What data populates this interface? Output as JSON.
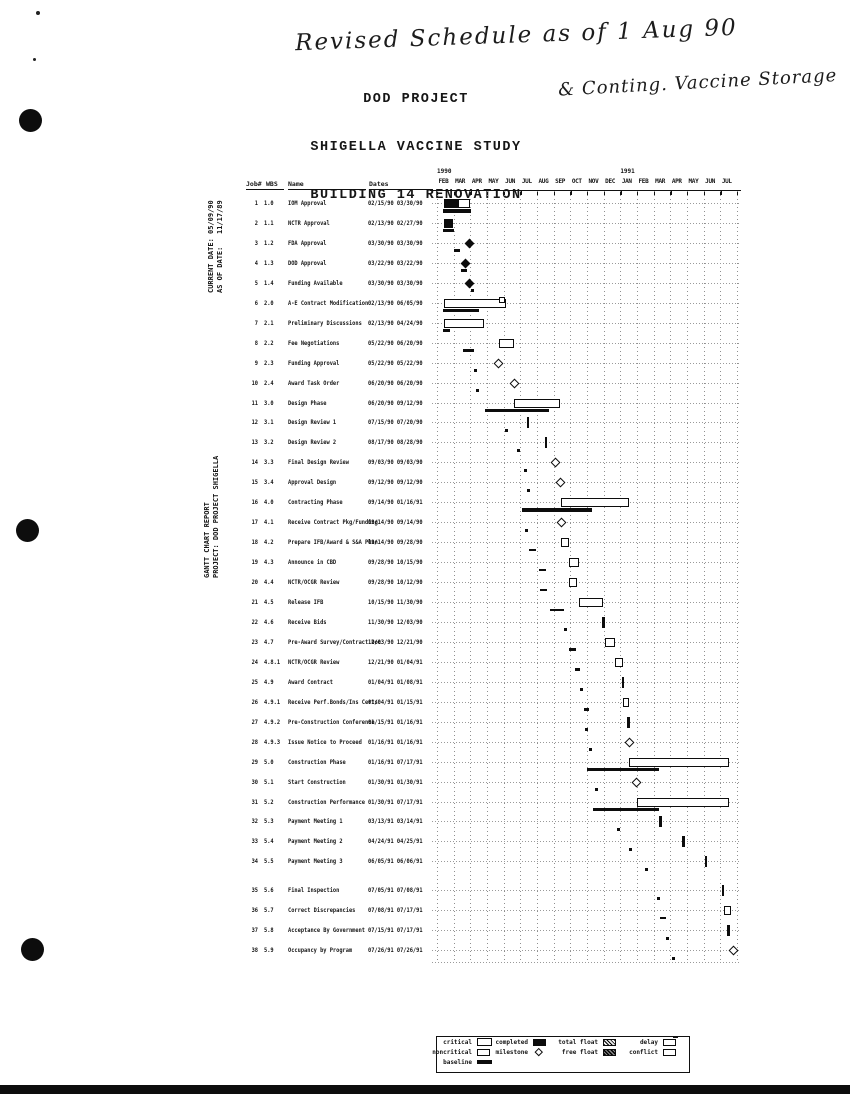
{
  "annotations": {
    "handwriting_top": "Revised Schedule as of 1 Aug 90",
    "handwriting_side": "& Conting. Vaccine Storage"
  },
  "title": {
    "line1": "DOD PROJECT",
    "line2": "SHIGELLA VACCINE STUDY",
    "line3": "BUILDING 14 RENOVATION"
  },
  "side": {
    "dates_block": "CURRENT DATE: 05/09/90\nAS OF DATE:   11/17/89",
    "report_block": "GANTT CHART REPORT\nPROJECT: DOD PROJECT SHIGELLA"
  },
  "columns": {
    "job": "Job#",
    "wbs": "WBS",
    "name": "Name",
    "dates": "Dates"
  },
  "timeline": {
    "years": [
      {
        "label": "1990",
        "month": 0
      },
      {
        "label": "1991",
        "month": 11
      }
    ],
    "months": [
      "FEB",
      "MAR",
      "APR",
      "MAY",
      "JUN",
      "JUL",
      "AUG",
      "SEP",
      "OCT",
      "NOV",
      "DEC",
      "JAN",
      "FEB",
      "MAR",
      "APR",
      "MAY",
      "JUN",
      "JUL"
    ]
  },
  "tasks": [
    {
      "job": "1",
      "wbs": "1.0",
      "name": "IOM Approval",
      "dates": "02/15/90 03/30/90",
      "bar": {
        "type": "completed+open",
        "start": 0.45,
        "split": 1.35,
        "end": 2.0
      },
      "baseline": {
        "kind": "bar",
        "start": 0.35,
        "end": 2.05
      }
    },
    {
      "job": "2",
      "wbs": "1.1",
      "name": "NCTR Approval",
      "dates": "02/13/90 02/27/90",
      "bar": {
        "type": "completed",
        "start": 0.4,
        "end": 0.95
      },
      "baseline": {
        "kind": "bar",
        "start": 0.35,
        "end": 1.0
      }
    },
    {
      "job": "3",
      "wbs": "1.2",
      "name": "FDA Approval",
      "dates": "03/30/90 03/30/90",
      "bar": {
        "type": "milestone-filled",
        "at": 1.97
      },
      "baseline": {
        "kind": "dash",
        "start": 1.0,
        "end": 1.4
      }
    },
    {
      "job": "4",
      "wbs": "1.3",
      "name": "DOD Approval",
      "dates": "03/22/90 03/22/90",
      "bar": {
        "type": "milestone-filled",
        "at": 1.72
      },
      "baseline": {
        "kind": "dash",
        "start": 1.45,
        "end": 1.8
      }
    },
    {
      "job": "5",
      "wbs": "1.4",
      "name": "Funding Available",
      "dates": "03/30/90 03/30/90",
      "bar": {
        "type": "milestone-filled",
        "at": 1.97
      },
      "baseline": {
        "kind": "dot",
        "at": 2.15
      }
    },
    {
      "job": "6",
      "wbs": "2.0",
      "name": "A-E Contract Modification",
      "dates": "02/13/90 06/05/90",
      "bar": {
        "type": "open",
        "start": 0.4,
        "end": 4.15,
        "endmark": true
      },
      "baseline": {
        "kind": "bar",
        "start": 0.35,
        "end": 2.5
      }
    },
    {
      "job": "7",
      "wbs": "2.1",
      "name": "Preliminary Discussions",
      "dates": "02/13/90 04/24/90",
      "bar": {
        "type": "open",
        "start": 0.4,
        "end": 2.8
      },
      "baseline": {
        "kind": "dash",
        "start": 0.35,
        "end": 0.78
      }
    },
    {
      "job": "8",
      "wbs": "2.2",
      "name": "Fee Negotiations",
      "dates": "05/22/90 06/20/90",
      "bar": {
        "type": "open",
        "start": 3.7,
        "end": 4.65
      },
      "baseline": {
        "kind": "dash",
        "start": 1.55,
        "end": 2.2
      }
    },
    {
      "job": "9",
      "wbs": "2.3",
      "name": "Funding Approval",
      "dates": "05/22/90 05/22/90",
      "bar": {
        "type": "milestone-open",
        "at": 3.7
      },
      "baseline": {
        "kind": "dot",
        "at": 2.3
      }
    },
    {
      "job": "10",
      "wbs": "2.4",
      "name": "Award Task Order",
      "dates": "06/20/90 06/20/90",
      "bar": {
        "type": "milestone-open",
        "at": 4.65
      },
      "baseline": {
        "kind": "dot",
        "at": 2.45
      }
    },
    {
      "job": "11",
      "wbs": "3.0",
      "name": "Design Phase",
      "dates": "06/20/90 09/12/90",
      "bar": {
        "type": "open",
        "start": 4.65,
        "end": 7.4
      },
      "baseline": {
        "kind": "bar",
        "start": 2.9,
        "end": 6.7
      }
    },
    {
      "job": "12",
      "wbs": "3.1",
      "name": "Design Review 1",
      "dates": "07/15/90 07/20/90",
      "bar": {
        "type": "tick",
        "at": 5.45
      },
      "baseline": {
        "kind": "dot",
        "at": 4.15
      }
    },
    {
      "job": "13",
      "wbs": "3.2",
      "name": "Design Review 2",
      "dates": "08/17/90 08/28/90",
      "bar": {
        "type": "tick",
        "at": 6.55
      },
      "baseline": {
        "kind": "dot",
        "at": 4.9
      }
    },
    {
      "job": "14",
      "wbs": "3.3",
      "name": "Final Design Review",
      "dates": "09/03/90 09/03/90",
      "bar": {
        "type": "milestone-open",
        "at": 7.1
      },
      "baseline": {
        "kind": "dot",
        "at": 5.3
      }
    },
    {
      "job": "15",
      "wbs": "3.4",
      "name": "Approval Design",
      "dates": "09/12/90 09/12/90",
      "bar": {
        "type": "milestone-open",
        "at": 7.4
      },
      "baseline": {
        "kind": "dot",
        "at": 5.5
      }
    },
    {
      "job": "16",
      "wbs": "4.0",
      "name": "Contracting Phase",
      "dates": "09/14/90 01/16/91",
      "bar": {
        "type": "open",
        "start": 7.45,
        "end": 11.5
      },
      "baseline": {
        "kind": "bar",
        "start": 5.1,
        "end": 9.3
      }
    },
    {
      "job": "17",
      "wbs": "4.1",
      "name": "Receive Contract Pkg/Funding",
      "dates": "09/14/90 09/14/90",
      "bar": {
        "type": "milestone-open",
        "at": 7.45
      },
      "baseline": {
        "kind": "dot",
        "at": 5.4
      }
    },
    {
      "job": "18",
      "wbs": "4.2",
      "name": "Prepare IFB/Award & S&A Plan",
      "dates": "09/14/90 09/28/90",
      "bar": {
        "type": "open",
        "start": 7.45,
        "end": 7.95
      },
      "baseline": {
        "kind": "dash",
        "start": 5.5,
        "end": 5.95
      }
    },
    {
      "job": "19",
      "wbs": "4.3",
      "name": "Announce in CBD",
      "dates": "09/28/90 10/15/90",
      "bar": {
        "type": "open",
        "start": 7.95,
        "end": 8.5
      },
      "baseline": {
        "kind": "dash",
        "start": 6.1,
        "end": 6.55
      }
    },
    {
      "job": "20",
      "wbs": "4.4",
      "name": "NCTR/OCGR Review",
      "dates": "09/28/90 10/12/90",
      "bar": {
        "type": "open",
        "start": 7.95,
        "end": 8.4
      },
      "baseline": {
        "kind": "dash",
        "start": 6.2,
        "end": 6.6
      }
    },
    {
      "job": "21",
      "wbs": "4.5",
      "name": "Release IFB",
      "dates": "10/15/90 11/30/90",
      "bar": {
        "type": "open",
        "start": 8.5,
        "end": 9.95
      },
      "baseline": {
        "kind": "dash",
        "start": 6.8,
        "end": 7.6
      }
    },
    {
      "job": "22",
      "wbs": "4.6",
      "name": "Receive Bids",
      "dates": "11/30/90 12/03/90",
      "bar": {
        "type": "tick",
        "at": 10.0
      },
      "baseline": {
        "kind": "dot",
        "at": 7.7
      }
    },
    {
      "job": "23",
      "wbs": "4.7",
      "name": "Pre-Award Survey/Contract Doc",
      "dates": "12/03/90 12/21/90",
      "bar": {
        "type": "open",
        "start": 10.1,
        "end": 10.7
      },
      "baseline": {
        "kind": "dash",
        "start": 7.9,
        "end": 8.35
      }
    },
    {
      "job": "24",
      "wbs": "4.8.1",
      "name": "NCTR/OCGR Review",
      "dates": "12/21/90 01/04/91",
      "bar": {
        "type": "open",
        "start": 10.7,
        "end": 11.15
      },
      "baseline": {
        "kind": "dash",
        "start": 8.3,
        "end": 8.6
      }
    },
    {
      "job": "25",
      "wbs": "4.9",
      "name": "Award Contract",
      "dates": "01/04/91 01/08/91",
      "bar": {
        "type": "tick",
        "at": 11.15
      },
      "baseline": {
        "kind": "dot",
        "at": 8.7
      }
    },
    {
      "job": "26",
      "wbs": "4.9.1",
      "name": "Receive Perf.Bonds/Ins Certs",
      "dates": "01/04/91 01/15/91",
      "bar": {
        "type": "open",
        "start": 11.15,
        "end": 11.55
      },
      "baseline": {
        "kind": "dash",
        "start": 8.8,
        "end": 9.15
      }
    },
    {
      "job": "27",
      "wbs": "4.9.2",
      "name": "Pre-Construction Conference",
      "dates": "01/15/91 01/16/91",
      "bar": {
        "type": "tick",
        "at": 11.5
      },
      "baseline": {
        "kind": "dot",
        "at": 9.0
      }
    },
    {
      "job": "28",
      "wbs": "4.9.3",
      "name": "Issue Notice to Proceed",
      "dates": "01/16/91 01/16/91",
      "bar": {
        "type": "milestone-open",
        "at": 11.55
      },
      "baseline": {
        "kind": "dot",
        "at": 9.2
      }
    },
    {
      "job": "29",
      "wbs": "5.0",
      "name": "Construction Phase",
      "dates": "01/16/91 07/17/91",
      "bar": {
        "type": "open",
        "start": 11.55,
        "end": 17.55
      },
      "baseline": {
        "kind": "bar",
        "start": 9.0,
        "end": 13.3
      }
    },
    {
      "job": "30",
      "wbs": "5.1",
      "name": "Start Construction",
      "dates": "01/30/91 01/30/91",
      "bar": {
        "type": "milestone-open",
        "at": 12.0
      },
      "baseline": {
        "kind": "dot",
        "at": 9.6
      }
    },
    {
      "job": "31",
      "wbs": "5.2",
      "name": "Construction Performance",
      "dates": "01/30/91 07/17/91",
      "bar": {
        "type": "open",
        "start": 12.0,
        "end": 17.55
      },
      "baseline": {
        "kind": "bar",
        "start": 9.35,
        "end": 13.3
      }
    },
    {
      "job": "32",
      "wbs": "5.3",
      "name": "Payment Meeting 1",
      "dates": "03/13/91 03/14/91",
      "bar": {
        "type": "tick",
        "at": 13.4
      },
      "baseline": {
        "kind": "dot",
        "at": 10.9
      }
    },
    {
      "job": "33",
      "wbs": "5.4",
      "name": "Payment Meeting 2",
      "dates": "04/24/91 04/25/91",
      "bar": {
        "type": "tick",
        "at": 14.8
      },
      "baseline": {
        "kind": "dot",
        "at": 11.6
      }
    },
    {
      "job": "34",
      "wbs": "5.5",
      "name": "Payment Meeting 3",
      "dates": "06/05/91 06/06/91",
      "bar": {
        "type": "tick",
        "at": 16.15
      },
      "baseline": {
        "kind": "dot",
        "at": 12.6
      }
    },
    {
      "job": "35",
      "wbs": "5.6",
      "name": "Final Inspection",
      "dates": "07/05/91 07/08/91",
      "bar": {
        "type": "tick",
        "at": 17.15
      },
      "baseline": {
        "kind": "dot",
        "at": 13.3
      }
    },
    {
      "job": "36",
      "wbs": "5.7",
      "name": "Correct Discrepancies",
      "dates": "07/08/91 07/17/91",
      "bar": {
        "type": "open",
        "start": 17.2,
        "end": 17.62
      },
      "baseline": {
        "kind": "dash",
        "start": 13.4,
        "end": 13.72
      }
    },
    {
      "job": "37",
      "wbs": "5.8",
      "name": "Acceptance By Government",
      "dates": "07/15/91 07/17/91",
      "bar": {
        "type": "tick",
        "at": 17.5
      },
      "baseline": {
        "kind": "dot",
        "at": 13.85
      }
    },
    {
      "job": "38",
      "wbs": "5.9",
      "name": "Occupancy by Program",
      "dates": "07/26/91 07/26/91",
      "bar": {
        "type": "milestone-open",
        "at": 17.8
      },
      "baseline": {
        "kind": "dot",
        "at": 14.2
      }
    }
  ],
  "legend": {
    "items": [
      {
        "label": "critical",
        "swatch": "open-lg",
        "col": 0,
        "row": 0
      },
      {
        "label": "noncritical",
        "swatch": "open-sm",
        "col": 0,
        "row": 1
      },
      {
        "label": "baseline",
        "swatch": "solid-bar",
        "col": 0,
        "row": 2
      },
      {
        "label": "completed",
        "swatch": "solid-box",
        "col": 1,
        "row": 0
      },
      {
        "label": "milestone",
        "swatch": "diamond",
        "col": 1,
        "row": 1
      },
      {
        "label": "total float",
        "swatch": "hatch",
        "col": 2,
        "row": 0
      },
      {
        "label": "free float",
        "swatch": "hatch-dark",
        "col": 2,
        "row": 1
      },
      {
        "label": "delay",
        "swatch": "open-tick",
        "col": 3,
        "row": 0
      },
      {
        "label": "conflict",
        "swatch": "open-sm",
        "col": 3,
        "row": 1
      }
    ]
  },
  "colors": {
    "ink": "#161616",
    "scan_bar": "#0d0d0d"
  }
}
